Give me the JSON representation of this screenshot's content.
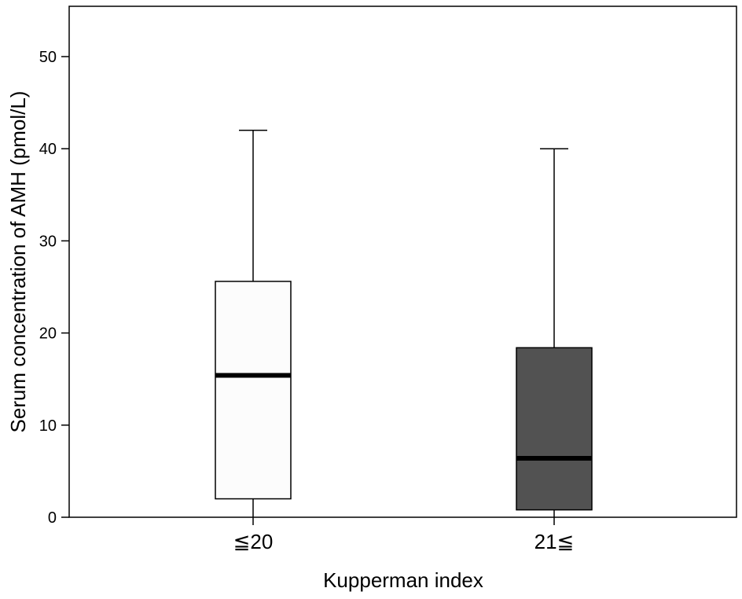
{
  "chart_data": {
    "type": "box",
    "xlabel": "Kupperman index",
    "ylabel": "Serum concentration of AMH (pmol/L)",
    "ylim": [
      0,
      55
    ],
    "yticks": [
      0,
      10,
      20,
      30,
      40,
      50
    ],
    "grid": false,
    "categories": [
      "≦20",
      "21≦"
    ],
    "boxes": [
      {
        "category": "≦20",
        "whisker_low": 0,
        "q1": 2.0,
        "median": 15.4,
        "q3": 25.6,
        "whisker_high": 42.0,
        "fill": "#fcfcfc"
      },
      {
        "category": "21≦",
        "whisker_low": 0,
        "q1": 0.8,
        "median": 6.4,
        "q3": 18.4,
        "whisker_high": 40.0,
        "fill": "#525252"
      }
    ]
  }
}
